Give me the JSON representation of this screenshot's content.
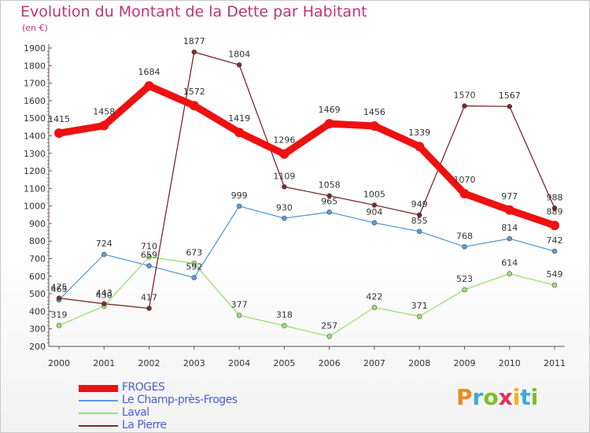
{
  "title": "Evolution du Montant de la Dette par Habitant",
  "subtitle": "(en €)",
  "logo": {
    "text": "Proxiti",
    "colors": [
      "#e98c1c",
      "#3fa9d6",
      "#7cbd2c",
      "#e0305a",
      "#f2b21a",
      "#3fa9d6",
      "#7cbd2c"
    ]
  },
  "chart_data": {
    "type": "line",
    "x": [
      "2000",
      "2001",
      "2002",
      "2003",
      "2004",
      "2005",
      "2006",
      "2007",
      "2008",
      "2009",
      "2010",
      "2011"
    ],
    "ylim": [
      200,
      1900
    ],
    "yticks": [
      200,
      300,
      400,
      500,
      600,
      700,
      800,
      900,
      1000,
      1100,
      1200,
      1300,
      1400,
      1500,
      1600,
      1700,
      1800,
      1900
    ],
    "grid": false,
    "legend": "bottom-left",
    "series": [
      {
        "name": "FROGES",
        "color": "#ee1111",
        "values": [
          1415,
          1458,
          1684,
          1572,
          1419,
          1296,
          1469,
          1456,
          1339,
          1070,
          977,
          889
        ]
      },
      {
        "name": "Le Champ-près-Froges",
        "color": "#5b9bd5",
        "values": [
          465,
          724,
          659,
          592,
          999,
          930,
          965,
          904,
          855,
          768,
          814,
          742
        ]
      },
      {
        "name": "Laval",
        "color": "#9be070",
        "values": [
          319,
          430,
          710,
          673,
          377,
          318,
          257,
          422,
          371,
          523,
          614,
          549
        ]
      },
      {
        "name": "La Pierre",
        "color": "#7a2a2a",
        "values": [
          475,
          443,
          417,
          1877,
          1804,
          1109,
          1058,
          1005,
          949,
          1570,
          1567,
          988
        ]
      }
    ]
  }
}
